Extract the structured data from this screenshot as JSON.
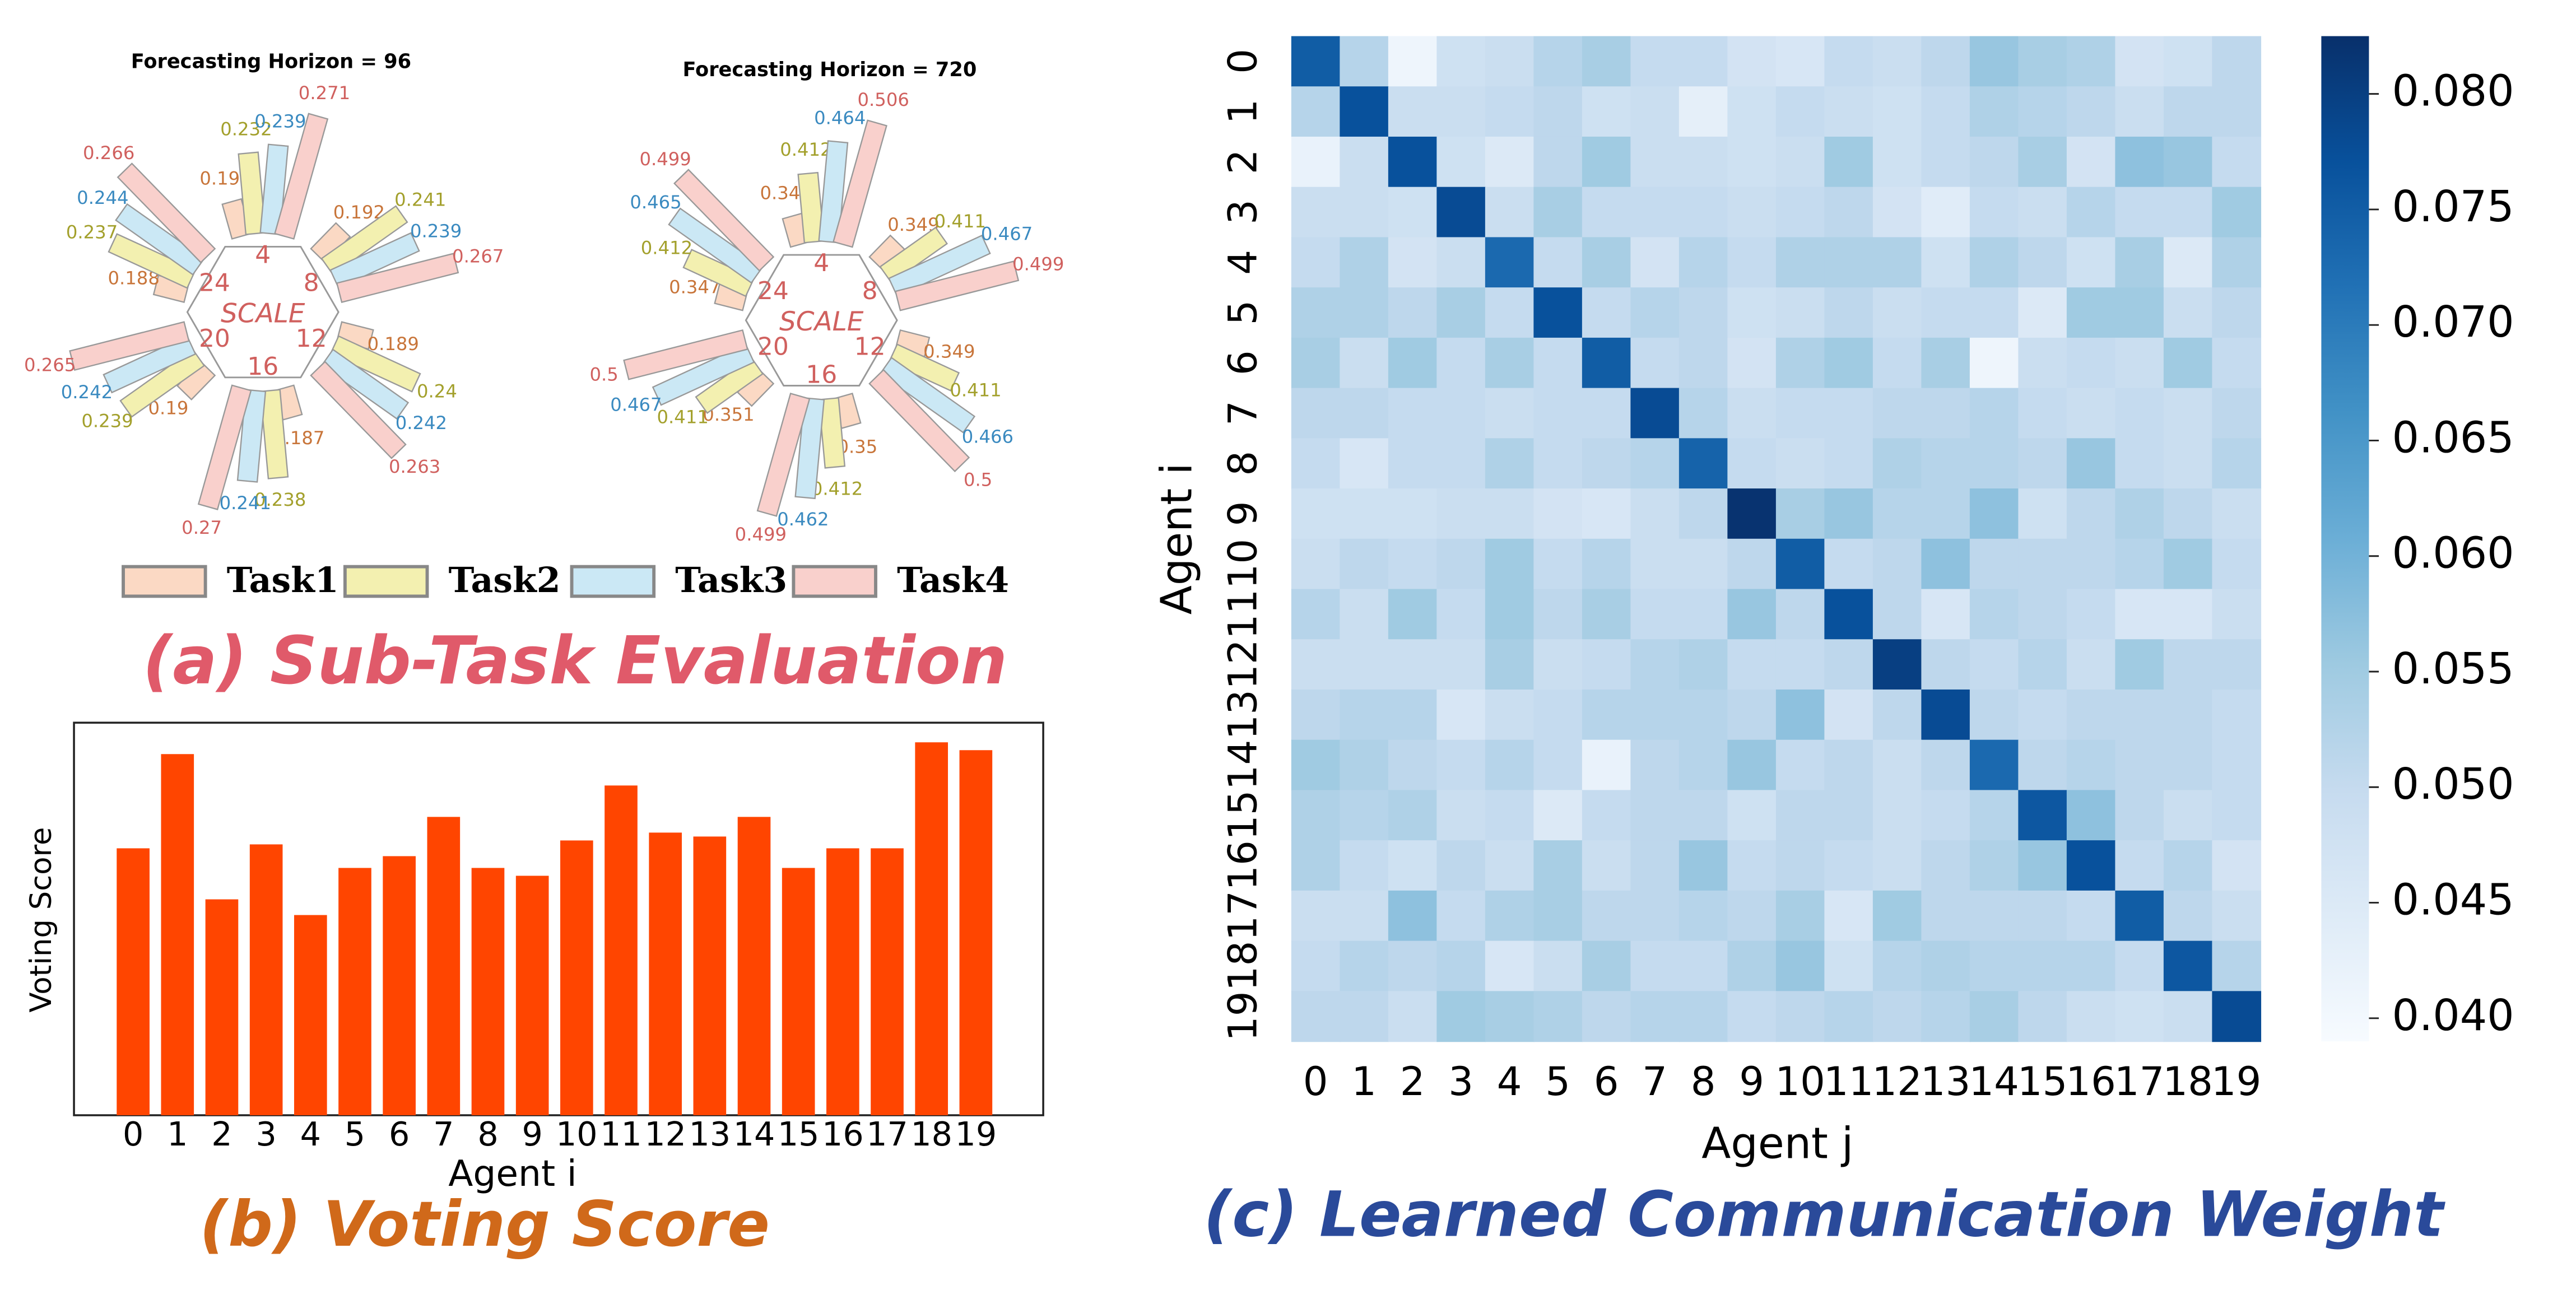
{
  "captions": {
    "a": "(a) Sub-Task Evaluation",
    "b": "(b) Voting Score",
    "c": "(c) Learned Communication Weight"
  },
  "chart_data": [
    {
      "type": "radial_bar",
      "title": "Forecasting Horizon = 96",
      "center_label": "SCALE",
      "groups": [
        "4",
        "8",
        "12",
        "16",
        "20",
        "24"
      ],
      "rlim": [
        0.16,
        0.28
      ],
      "series": [
        {
          "name": "Task1",
          "color": "#fbd9c4",
          "text_color": "#c8753a",
          "values": [
            0.192,
            0.192,
            0.189,
            0.187,
            0.19,
            0.188
          ]
        },
        {
          "name": "Task2",
          "color": "#f3f0b0",
          "text_color": "#a3a02c",
          "values": [
            0.232,
            0.241,
            0.24,
            0.238,
            0.239,
            0.237
          ]
        },
        {
          "name": "Task3",
          "color": "#cbe8f5",
          "text_color": "#3a8ac0",
          "values": [
            0.239,
            0.239,
            0.242,
            0.241,
            0.242,
            0.244
          ]
        },
        {
          "name": "Task4",
          "color": "#f9d0cc",
          "text_color": "#d0605e",
          "values": [
            0.271,
            0.267,
            0.263,
            0.27,
            0.265,
            0.266
          ]
        }
      ]
    },
    {
      "type": "radial_bar",
      "title": "Forecasting Horizon = 720",
      "center_label": "SCALE",
      "groups": [
        "4",
        "8",
        "12",
        "16",
        "20",
        "24"
      ],
      "rlim": [
        0.3,
        0.52
      ],
      "series": [
        {
          "values": [
            0.348,
            0.349,
            0.349,
            0.35,
            0.351,
            0.347
          ]
        },
        {
          "values": [
            0.412,
            0.411,
            0.411,
            0.412,
            0.411,
            0.412
          ]
        },
        {
          "values": [
            0.464,
            0.467,
            0.466,
            0.462,
            0.467,
            0.465
          ]
        },
        {
          "values": [
            0.506,
            0.499,
            0.5,
            0.499,
            0.5,
            0.499
          ]
        }
      ]
    },
    {
      "type": "bar",
      "xlabel": "Agent i",
      "ylabel": "Voting Score",
      "color": "#ff4500",
      "ylim": [
        0,
        1
      ],
      "categories": [
        "0",
        "1",
        "2",
        "3",
        "4",
        "5",
        "6",
        "7",
        "8",
        "9",
        "10",
        "11",
        "12",
        "13",
        "14",
        "15",
        "16",
        "17",
        "18",
        "19"
      ],
      "values": [
        0.68,
        0.92,
        0.55,
        0.69,
        0.51,
        0.63,
        0.66,
        0.76,
        0.63,
        0.61,
        0.7,
        0.84,
        0.72,
        0.71,
        0.76,
        0.63,
        0.68,
        0.68,
        0.95,
        0.93
      ]
    },
    {
      "type": "heatmap",
      "xlabel": "Agent j",
      "ylabel": "Agent i",
      "colormap": "Blues",
      "clim": [
        0.039,
        0.0825
      ],
      "categories": [
        "0",
        "1",
        "2",
        "3",
        "4",
        "5",
        "6",
        "7",
        "8",
        "9",
        "10",
        "11",
        "12",
        "13",
        "14",
        "15",
        "16",
        "17",
        "18",
        "19"
      ],
      "cticks": [
        {
          "value": 0.08,
          "label": "0.080"
        },
        0.075,
        {
          "value": 0.07,
          "label": "0.070"
        },
        0.065,
        {
          "value": 0.06,
          "label": "0.060"
        },
        0.055,
        {
          "value": 0.05,
          "label": "0.050"
        },
        0.045,
        {
          "value": 0.04,
          "label": "0.040"
        }
      ],
      "values": [
        [
          0.075,
          0.052,
          0.041,
          0.048,
          0.049,
          0.052,
          0.054,
          0.05,
          0.05,
          0.047,
          0.046,
          0.05,
          0.049,
          0.051,
          0.056,
          0.054,
          0.053,
          0.047,
          0.048,
          0.051
        ],
        [
          0.052,
          0.077,
          0.049,
          0.049,
          0.05,
          0.051,
          0.048,
          0.049,
          0.043,
          0.048,
          0.05,
          0.049,
          0.048,
          0.05,
          0.053,
          0.052,
          0.051,
          0.049,
          0.051,
          0.051
        ],
        [
          0.042,
          0.049,
          0.077,
          0.048,
          0.045,
          0.051,
          0.055,
          0.049,
          0.049,
          0.048,
          0.049,
          0.055,
          0.048,
          0.05,
          0.051,
          0.054,
          0.047,
          0.057,
          0.056,
          0.05
        ],
        [
          0.049,
          0.049,
          0.048,
          0.078,
          0.049,
          0.054,
          0.05,
          0.05,
          0.05,
          0.049,
          0.05,
          0.051,
          0.047,
          0.044,
          0.05,
          0.049,
          0.052,
          0.05,
          0.05,
          0.055
        ],
        [
          0.05,
          0.053,
          0.047,
          0.049,
          0.073,
          0.05,
          0.054,
          0.047,
          0.052,
          0.05,
          0.053,
          0.053,
          0.053,
          0.048,
          0.053,
          0.051,
          0.048,
          0.054,
          0.045,
          0.053
        ],
        [
          0.053,
          0.053,
          0.051,
          0.054,
          0.05,
          0.077,
          0.05,
          0.052,
          0.051,
          0.048,
          0.049,
          0.051,
          0.049,
          0.05,
          0.05,
          0.045,
          0.055,
          0.055,
          0.049,
          0.051
        ],
        [
          0.054,
          0.049,
          0.055,
          0.05,
          0.054,
          0.05,
          0.075,
          0.05,
          0.051,
          0.047,
          0.053,
          0.055,
          0.05,
          0.054,
          0.041,
          0.049,
          0.05,
          0.049,
          0.055,
          0.05
        ],
        [
          0.051,
          0.051,
          0.05,
          0.05,
          0.049,
          0.05,
          0.05,
          0.078,
          0.052,
          0.049,
          0.05,
          0.05,
          0.051,
          0.051,
          0.052,
          0.05,
          0.049,
          0.05,
          0.049,
          0.051
        ],
        [
          0.05,
          0.046,
          0.05,
          0.05,
          0.053,
          0.05,
          0.051,
          0.052,
          0.074,
          0.05,
          0.049,
          0.05,
          0.053,
          0.052,
          0.052,
          0.051,
          0.056,
          0.05,
          0.049,
          0.052
        ],
        [
          0.048,
          0.048,
          0.048,
          0.049,
          0.049,
          0.047,
          0.046,
          0.049,
          0.051,
          0.082,
          0.054,
          0.056,
          0.052,
          0.052,
          0.057,
          0.048,
          0.051,
          0.053,
          0.051,
          0.049
        ],
        [
          0.049,
          0.051,
          0.05,
          0.051,
          0.055,
          0.05,
          0.052,
          0.049,
          0.049,
          0.051,
          0.075,
          0.05,
          0.051,
          0.057,
          0.051,
          0.051,
          0.051,
          0.052,
          0.055,
          0.05
        ],
        [
          0.052,
          0.049,
          0.055,
          0.05,
          0.055,
          0.051,
          0.054,
          0.05,
          0.05,
          0.056,
          0.051,
          0.077,
          0.051,
          0.046,
          0.052,
          0.051,
          0.05,
          0.046,
          0.046,
          0.049
        ],
        [
          0.049,
          0.049,
          0.049,
          0.049,
          0.054,
          0.049,
          0.05,
          0.052,
          0.053,
          0.05,
          0.05,
          0.051,
          0.08,
          0.051,
          0.05,
          0.052,
          0.049,
          0.055,
          0.051,
          0.051
        ],
        [
          0.051,
          0.052,
          0.052,
          0.046,
          0.049,
          0.05,
          0.052,
          0.052,
          0.052,
          0.051,
          0.057,
          0.047,
          0.051,
          0.078,
          0.051,
          0.05,
          0.051,
          0.051,
          0.051,
          0.05
        ],
        [
          0.055,
          0.053,
          0.051,
          0.05,
          0.052,
          0.05,
          0.042,
          0.051,
          0.052,
          0.056,
          0.05,
          0.051,
          0.049,
          0.051,
          0.073,
          0.051,
          0.052,
          0.051,
          0.051,
          0.05
        ],
        [
          0.053,
          0.052,
          0.053,
          0.049,
          0.05,
          0.045,
          0.05,
          0.051,
          0.051,
          0.048,
          0.051,
          0.051,
          0.049,
          0.05,
          0.052,
          0.076,
          0.057,
          0.051,
          0.049,
          0.05
        ],
        [
          0.053,
          0.05,
          0.048,
          0.051,
          0.049,
          0.054,
          0.049,
          0.051,
          0.056,
          0.05,
          0.051,
          0.05,
          0.049,
          0.051,
          0.053,
          0.056,
          0.077,
          0.05,
          0.052,
          0.047
        ],
        [
          0.049,
          0.049,
          0.057,
          0.05,
          0.053,
          0.054,
          0.051,
          0.051,
          0.052,
          0.051,
          0.054,
          0.046,
          0.055,
          0.051,
          0.051,
          0.051,
          0.05,
          0.075,
          0.051,
          0.049
        ],
        [
          0.05,
          0.052,
          0.051,
          0.052,
          0.046,
          0.049,
          0.054,
          0.05,
          0.05,
          0.053,
          0.056,
          0.048,
          0.052,
          0.053,
          0.052,
          0.052,
          0.052,
          0.05,
          0.076,
          0.052
        ],
        [
          0.051,
          0.051,
          0.049,
          0.055,
          0.054,
          0.053,
          0.051,
          0.052,
          0.052,
          0.05,
          0.051,
          0.052,
          0.051,
          0.052,
          0.054,
          0.051,
          0.049,
          0.048,
          0.049,
          0.078
        ]
      ]
    }
  ]
}
